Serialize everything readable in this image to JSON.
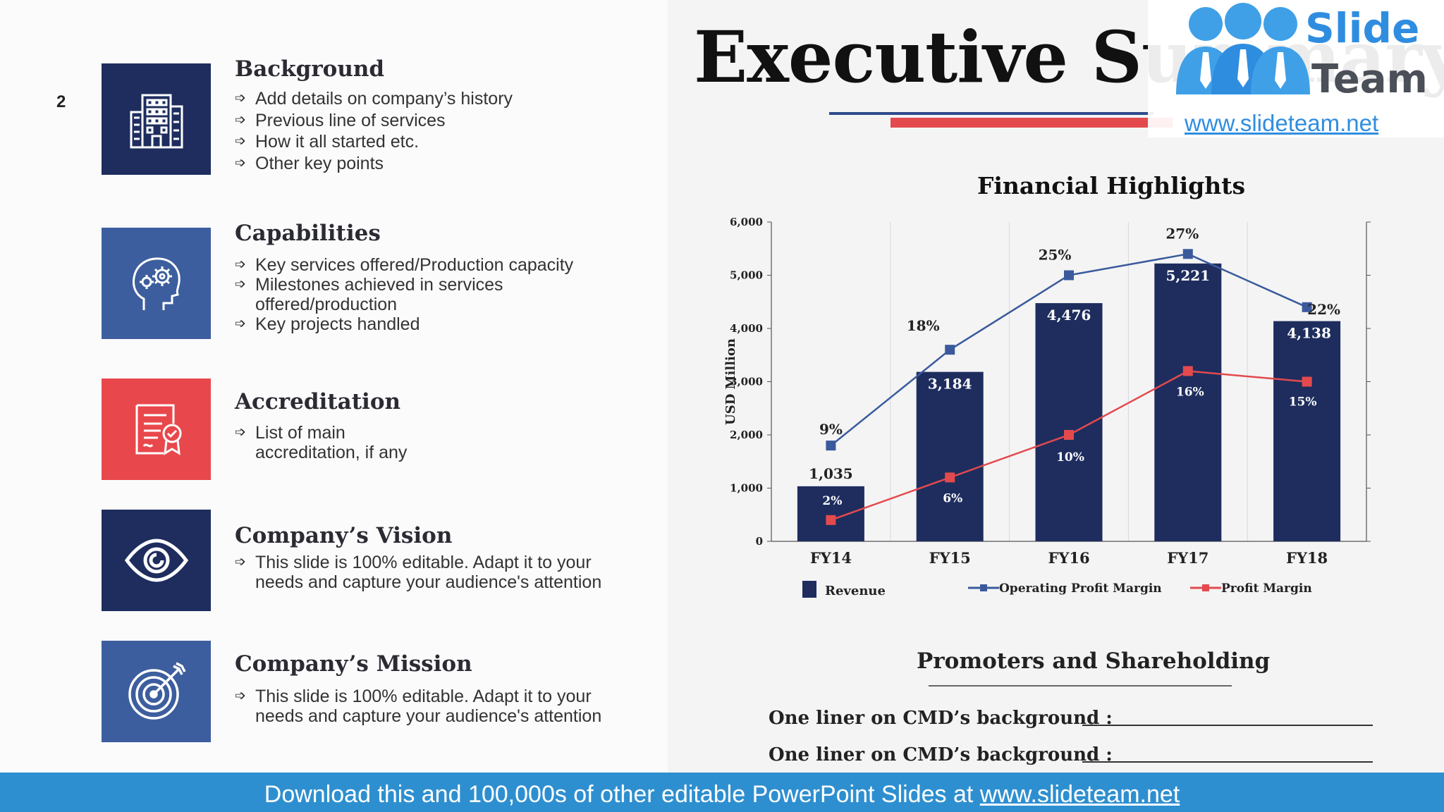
{
  "slide_number": "2",
  "title": "Executive Summary",
  "logo": {
    "line1": "Slide",
    "line2": "Team",
    "url": "www.slideteam.net"
  },
  "sections": [
    {
      "title": "Background",
      "icon": "office-building-icon",
      "color": "#1e2d5e",
      "bullets": [
        "Add details on company’s history",
        "Previous line of services",
        "How it all started etc.",
        "Other key points"
      ]
    },
    {
      "title": "Capabilities",
      "icon": "head-gears-icon",
      "color": "#3d5e9e",
      "bullets": [
        "Key services offered/Production capacity",
        "Milestones achieved in services offered/production",
        "Key projects handled"
      ]
    },
    {
      "title": "Accreditation",
      "icon": "certificate-icon",
      "color": "#e8484c",
      "bullets": [
        "List of main accreditation, if any"
      ]
    },
    {
      "title": "Company’s Vision",
      "icon": "eye-icon",
      "color": "#1e2d5e",
      "bullets": [
        "This slide is 100% editable. Adapt it to your needs and capture your audience's attention"
      ]
    },
    {
      "title": "Company’s Mission",
      "icon": "target-arrow-icon",
      "color": "#3d5e9e",
      "bullets": [
        "This slide is 100% editable. Adapt it to your needs and capture your audience's attention"
      ]
    }
  ],
  "chart_data": {
    "type": "bar",
    "title": "Financial Highlights",
    "categories": [
      "FY14",
      "FY15",
      "FY16",
      "FY17",
      "FY18"
    ],
    "ylabel": "USD Million",
    "ylim": [
      0,
      6000
    ],
    "yticks": [
      "0",
      "1,000",
      "2,000",
      "3,000",
      "4,000",
      "5,000",
      "6,000"
    ],
    "y2lim": [
      0,
      30
    ],
    "y2ticks": [
      "0%",
      "5%",
      "10%",
      "15%",
      "20%",
      "25%",
      "30%"
    ],
    "series": [
      {
        "name": "Revenue",
        "kind": "bar",
        "color": "#1e2d5e",
        "values": [
          1035,
          3184,
          4476,
          5221,
          4138
        ],
        "labels": [
          "1,035",
          "3,184",
          "4,476",
          "5,221",
          "4,138"
        ]
      },
      {
        "name": "Operating Profit Margin",
        "kind": "line",
        "axis": "right",
        "color": "#3a5a9c",
        "values": [
          9,
          18,
          25,
          27,
          22
        ],
        "labels": [
          "9%",
          "18%",
          "25%",
          "27%",
          "22%"
        ]
      },
      {
        "name": "Profit Margin",
        "kind": "line",
        "axis": "right",
        "color": "#e34a4d",
        "values": [
          2,
          6,
          10,
          16,
          15
        ],
        "labels": [
          "2%",
          "6%",
          "10%",
          "16%",
          "15%"
        ]
      }
    ],
    "grid": "vertical category separators",
    "legend_position": "bottom"
  },
  "promoters": {
    "title": "Promoters and Shareholding",
    "lines": [
      "One liner on CMD’s background :",
      "One liner on CMD’s background :"
    ]
  },
  "footer": {
    "text": "Download this and 100,000s of other editable PowerPoint Slides at ",
    "link": "www.slideteam.net"
  }
}
